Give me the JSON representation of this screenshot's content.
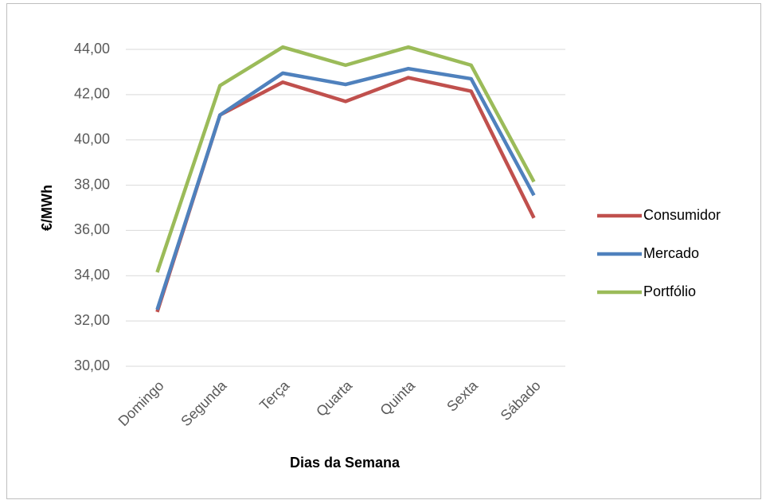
{
  "chart_data": {
    "type": "line",
    "x_label": "Dias da Semana",
    "y_label": "€/MWh",
    "categories": [
      "Domingo",
      "Segunda",
      "Terça",
      "Quarta",
      "Quinta",
      "Sexta",
      "Sábado"
    ],
    "series": [
      {
        "name": "Consumidor",
        "color": "#c0504d",
        "values": [
          32.4,
          41.1,
          42.55,
          41.7,
          42.75,
          42.15,
          36.55
        ]
      },
      {
        "name": "Mercado",
        "color": "#4f81bd",
        "values": [
          32.5,
          41.1,
          42.95,
          42.45,
          43.15,
          42.7,
          37.55
        ]
      },
      {
        "name": "Portfólio",
        "color": "#9bbb59",
        "values": [
          34.15,
          42.4,
          44.1,
          43.3,
          44.1,
          43.3,
          38.15
        ]
      }
    ],
    "ylim": [
      30,
      44
    ],
    "yticks": [
      {
        "value": 30,
        "label": "30,00"
      },
      {
        "value": 32,
        "label": "32,00"
      },
      {
        "value": 34,
        "label": "34,00"
      },
      {
        "value": 36,
        "label": "36,00"
      },
      {
        "value": 38,
        "label": "38,00"
      },
      {
        "value": 40,
        "label": "40,00"
      },
      {
        "value": 42,
        "label": "42,00"
      },
      {
        "value": 44,
        "label": "44,00"
      }
    ],
    "grid": true,
    "legend": "right"
  }
}
